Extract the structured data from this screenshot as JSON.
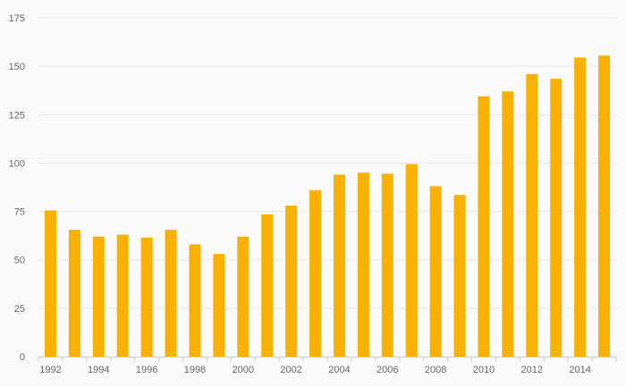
{
  "chart_data": {
    "type": "bar",
    "categories": [
      "1992",
      "1993",
      "1994",
      "1995",
      "1996",
      "1997",
      "1998",
      "1999",
      "2000",
      "2001",
      "2002",
      "2003",
      "2004",
      "2005",
      "2006",
      "2007",
      "2008",
      "2009",
      "2010",
      "2011",
      "2012",
      "2013",
      "2014",
      "2015"
    ],
    "x_tick_labels": [
      "1992",
      "1994",
      "1996",
      "1998",
      "2000",
      "2002",
      "2004",
      "2006",
      "2008",
      "2010",
      "2012",
      "2014"
    ],
    "values": [
      75.5,
      65.5,
      62,
      63,
      61.5,
      65.5,
      58,
      53,
      62,
      73.5,
      78,
      86,
      94,
      95,
      94.5,
      99.5,
      88,
      83.5,
      134.5,
      137,
      146,
      143.5,
      154.5,
      155.5
    ],
    "y_ticks": [
      0,
      25,
      50,
      75,
      100,
      125,
      150,
      175
    ],
    "ylim": [
      0,
      175
    ],
    "title": "",
    "xlabel": "",
    "ylabel": "",
    "grid": true,
    "legend": "none",
    "colors": {
      "bar": "#f8b100",
      "grid": "#e6e6e6",
      "axis": "#cccccc",
      "label": "#666666",
      "background": "#fafafa"
    }
  }
}
